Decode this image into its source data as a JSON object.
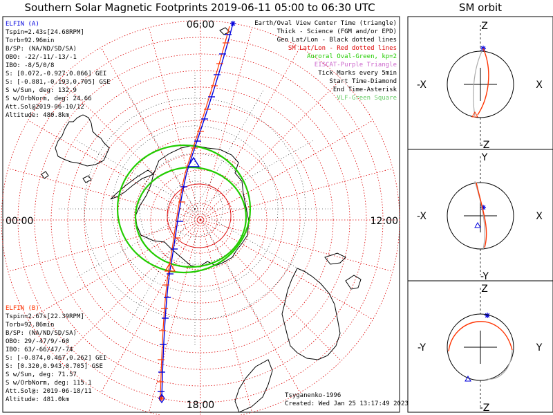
{
  "title": "Southern Solar Magnetic Footprints 2019-06-11 05:00 to 06:30 UTC",
  "sm_title": "SM orbit",
  "colors": {
    "satA": "#0000dd",
    "satB": "#ff3300",
    "oval": "#22cc00",
    "sm": "#dd0000",
    "geo": "#000000",
    "science": "#222222",
    "orbitGray": "#aaaaaa"
  },
  "polar": {
    "mlt_labels": {
      "top": "06:00",
      "left": "00:00",
      "right": "12:00",
      "bottom": "18:00"
    },
    "legend": [
      {
        "text": "Earth/Oval View Center Time (triangle)",
        "color": "#000000"
      },
      {
        "text": "Thick - Science (FGM and/or EPD)",
        "color": "#000000"
      },
      {
        "text": "Geo Lat/Lon - Black dotted lines",
        "color": "#000000"
      },
      {
        "text": "SM Lat/Lon - Red dotted lines",
        "color": "#dd0000"
      },
      {
        "text": "Auroral Oval-Green, kp=2",
        "color": "#22cc00"
      },
      {
        "text": "EISCAT-Purple Triangle",
        "color": "#cc66cc"
      },
      {
        "text": "Tick Marks every 5min",
        "color": "#000000"
      },
      {
        "text": "Start Time-Diamond",
        "color": "#000000"
      },
      {
        "text": "End Time-Asterisk",
        "color": "#000000"
      },
      {
        "text": "VLF-Green Square",
        "color": "#66cc66"
      }
    ],
    "sat_a": {
      "name": "ELFIN (A)",
      "lines": [
        "Tspin=2.43s[24.68RPM]",
        "Torb=92.96min",
        "B/SP: (NA/ND/SD/SA)",
        "OBO: -22/-11/-13/-1",
        "IBO: -8/5/0/8",
        "S: [0.072,-0.927,0.066] GEI",
        "S: [-0.881,-0.193,0.705] GSE",
        "S w/Sun, deg: 132.9",
        "S w/OrbNorm, deg: 24.66",
        "Att.Sol@2019-06-10/12",
        "Altitude: 480.8km"
      ]
    },
    "sat_b": {
      "name": "ELFIN (B)",
      "lines": [
        "Tspin=2.67s[22.39RPM]",
        "Torb=92.86min",
        "B/SP: (NA/ND/SD/SA)",
        "OBO: 29/-47/9/-60",
        "IBO: 63/-66/47/-74",
        "S: [-0.874,0.467,0.262] GEI",
        "S: [0.320,0.943,0.705] GSE",
        "S w/Sun, deg: 71.57",
        "S w/OrbNorm, deg: 115.1",
        "Att.Sol@: 2019-06-18/11",
        "Altitude: 481.0km"
      ]
    },
    "credit": "Tsyganenko-1996",
    "created": "Created: Wed Jan 25 13:17:49 2023"
  },
  "sm_orbit": {
    "panels": [
      {
        "top": "Z",
        "bottom": "-Z",
        "left": "-X",
        "right": "X"
      },
      {
        "top": "Y",
        "bottom": "-Y",
        "left": "-X",
        "right": "X"
      },
      {
        "top": "Z",
        "bottom": "-Z",
        "left": "-Y",
        "right": "Y"
      }
    ]
  }
}
